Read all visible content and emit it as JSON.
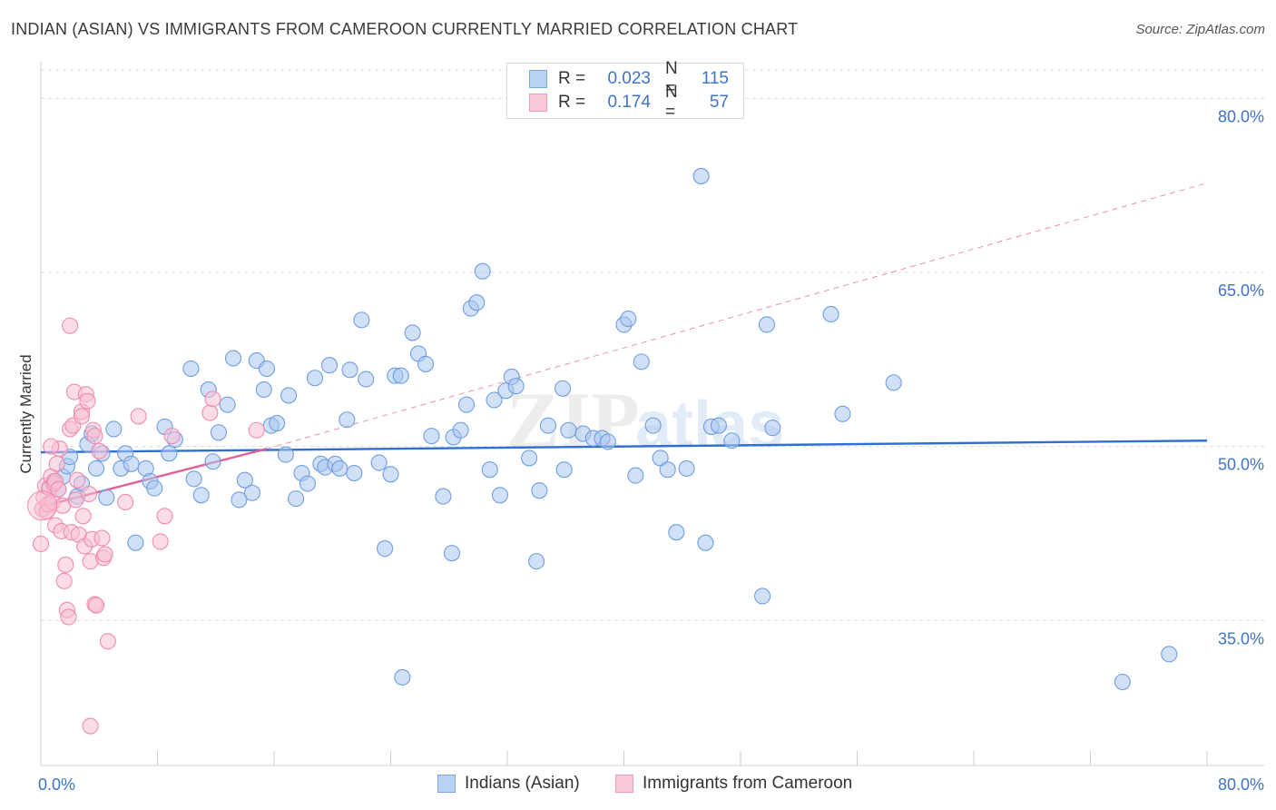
{
  "header": {
    "title": "INDIAN (ASIAN) VS IMMIGRANTS FROM CAMEROON CURRENTLY MARRIED CORRELATION CHART",
    "source": "Source: ZipAtlas.com"
  },
  "legend": {
    "rows": [
      {
        "r_label": "R =",
        "r_value": "0.023",
        "n_label": "N =",
        "n_value": "115",
        "color": "#9dbbee"
      },
      {
        "r_label": "R =",
        "r_value": "0.174",
        "n_label": "N =",
        "n_value": "57",
        "color": "#f4a7c0"
      }
    ]
  },
  "bottom_legend": {
    "items": [
      {
        "label": "Indians (Asian)",
        "color": "#9dbbee"
      },
      {
        "label": "Immigrants from Cameroon",
        "color": "#f4a7c0"
      }
    ]
  },
  "watermark": {
    "zip": "ZIP",
    "atlas": "atlas"
  },
  "chart_data": {
    "type": "scatter",
    "title": "INDIAN (ASIAN) VS IMMIGRANTS FROM CAMEROON CURRENTLY MARRIED CORRELATION CHART",
    "xlabel": "",
    "ylabel": "Currently Married",
    "xlim": [
      0,
      80
    ],
    "ylim": [
      22.5,
      83
    ],
    "x_tick_labels": [
      "0.0%",
      "80.0%"
    ],
    "y_ticks": [
      35,
      50,
      65,
      80
    ],
    "y_tick_labels": [
      "35.0%",
      "50.0%",
      "65.0%",
      "80.0%"
    ],
    "grid": true,
    "legend_position": "top-center",
    "series": [
      {
        "name": "Indians (Asian)",
        "color": "#6f9ee0",
        "fill": "#a9c6f0",
        "r": 0.023,
        "n": 115,
        "trend": {
          "x": [
            0,
            80
          ],
          "y": [
            49.5,
            50.5
          ],
          "style": "solid",
          "color": "#2f6fd0"
        },
        "points": [
          [
            0.6,
            46.5
          ],
          [
            0.9,
            47.0
          ],
          [
            1.2,
            46.3
          ],
          [
            1.5,
            47.4
          ],
          [
            1.8,
            48.3
          ],
          [
            2.0,
            49.1
          ],
          [
            2.5,
            45.7
          ],
          [
            2.8,
            46.8
          ],
          [
            3.2,
            50.2
          ],
          [
            3.5,
            51.1
          ],
          [
            3.8,
            48.1
          ],
          [
            4.2,
            49.4
          ],
          [
            4.5,
            45.6
          ],
          [
            5.0,
            51.5
          ],
          [
            5.5,
            48.1
          ],
          [
            5.8,
            49.4
          ],
          [
            6.2,
            48.5
          ],
          [
            6.5,
            41.7
          ],
          [
            7.2,
            48.1
          ],
          [
            7.5,
            47.0
          ],
          [
            7.8,
            46.4
          ],
          [
            8.5,
            51.7
          ],
          [
            8.8,
            49.4
          ],
          [
            9.2,
            50.6
          ],
          [
            10.3,
            56.7
          ],
          [
            10.5,
            47.2
          ],
          [
            11.0,
            45.8
          ],
          [
            11.5,
            54.9
          ],
          [
            11.8,
            48.7
          ],
          [
            12.2,
            51.2
          ],
          [
            12.8,
            53.6
          ],
          [
            13.2,
            57.6
          ],
          [
            13.6,
            45.4
          ],
          [
            14.0,
            47.1
          ],
          [
            14.5,
            46.0
          ],
          [
            14.8,
            57.4
          ],
          [
            15.3,
            54.9
          ],
          [
            15.5,
            56.7
          ],
          [
            15.8,
            51.8
          ],
          [
            16.2,
            52.0
          ],
          [
            16.8,
            49.3
          ],
          [
            17.0,
            54.4
          ],
          [
            17.5,
            45.5
          ],
          [
            17.9,
            47.7
          ],
          [
            18.3,
            46.8
          ],
          [
            18.8,
            55.9
          ],
          [
            19.2,
            48.5
          ],
          [
            19.5,
            48.2
          ],
          [
            19.8,
            57.0
          ],
          [
            20.2,
            48.5
          ],
          [
            20.5,
            48.1
          ],
          [
            21.0,
            52.3
          ],
          [
            21.2,
            56.6
          ],
          [
            21.5,
            47.7
          ],
          [
            22.0,
            60.9
          ],
          [
            22.3,
            55.8
          ],
          [
            23.2,
            48.6
          ],
          [
            23.6,
            41.2
          ],
          [
            24.0,
            47.6
          ],
          [
            24.3,
            56.1
          ],
          [
            24.7,
            56.1
          ],
          [
            25.5,
            59.8
          ],
          [
            25.9,
            58.0
          ],
          [
            26.4,
            57.1
          ],
          [
            26.8,
            50.9
          ],
          [
            27.6,
            45.7
          ],
          [
            28.2,
            40.8
          ],
          [
            28.3,
            50.8
          ],
          [
            28.8,
            51.4
          ],
          [
            29.2,
            53.6
          ],
          [
            29.5,
            61.9
          ],
          [
            29.9,
            62.4
          ],
          [
            30.3,
            65.1
          ],
          [
            30.8,
            48.0
          ],
          [
            31.1,
            54.0
          ],
          [
            31.5,
            45.8
          ],
          [
            31.9,
            54.8
          ],
          [
            32.3,
            56.0
          ],
          [
            32.6,
            55.2
          ],
          [
            33.5,
            49.0
          ],
          [
            34.0,
            40.1
          ],
          [
            34.2,
            46.2
          ],
          [
            34.8,
            51.8
          ],
          [
            35.8,
            55.0
          ],
          [
            35.9,
            48.0
          ],
          [
            36.2,
            51.4
          ],
          [
            37.2,
            51.1
          ],
          [
            37.9,
            50.7
          ],
          [
            38.5,
            50.7
          ],
          [
            38.9,
            50.4
          ],
          [
            40.0,
            60.5
          ],
          [
            40.3,
            61.0
          ],
          [
            40.8,
            47.5
          ],
          [
            41.2,
            57.3
          ],
          [
            42.0,
            51.8
          ],
          [
            42.5,
            49.0
          ],
          [
            43.0,
            48.0
          ],
          [
            43.6,
            42.6
          ],
          [
            44.3,
            48.1
          ],
          [
            45.3,
            73.3
          ],
          [
            45.6,
            41.7
          ],
          [
            46.0,
            51.7
          ],
          [
            46.5,
            51.8
          ],
          [
            47.4,
            50.5
          ],
          [
            49.5,
            37.1
          ],
          [
            49.8,
            60.5
          ],
          [
            50.2,
            51.6
          ],
          [
            54.2,
            61.4
          ],
          [
            55.0,
            52.8
          ],
          [
            58.5,
            55.5
          ],
          [
            74.2,
            29.7
          ],
          [
            77.4,
            32.1
          ],
          [
            24.8,
            30.1
          ]
        ]
      },
      {
        "name": "Immigrants from Cameroon",
        "color": "#f08bb0",
        "fill": "#f7bfd3",
        "r": 0.174,
        "n": 57,
        "trend": {
          "x": [
            0,
            15.5
          ],
          "y": [
            44.8,
            49.8
          ],
          "style": "solid",
          "color": "#e0609a",
          "extension": {
            "x": [
              15.5,
              80
            ],
            "y": [
              49.8,
              72.7
            ],
            "style": "dashed"
          }
        },
        "points": [
          [
            0.0,
            41.6
          ],
          [
            0.1,
            44.6
          ],
          [
            0.2,
            45.6
          ],
          [
            0.3,
            46.6
          ],
          [
            0.4,
            44.4
          ],
          [
            0.5,
            45.0
          ],
          [
            0.6,
            46.4
          ],
          [
            0.7,
            47.4
          ],
          [
            0.8,
            45.2
          ],
          [
            0.9,
            46.8
          ],
          [
            1.0,
            43.2
          ],
          [
            1.0,
            47.0
          ],
          [
            1.1,
            48.5
          ],
          [
            1.2,
            46.3
          ],
          [
            1.3,
            49.8
          ],
          [
            1.4,
            42.7
          ],
          [
            1.5,
            44.9
          ],
          [
            1.6,
            38.4
          ],
          [
            1.7,
            39.8
          ],
          [
            1.8,
            35.9
          ],
          [
            1.9,
            35.3
          ],
          [
            2.0,
            51.5
          ],
          [
            2.1,
            42.6
          ],
          [
            2.2,
            51.8
          ],
          [
            2.3,
            54.7
          ],
          [
            2.4,
            45.4
          ],
          [
            2.5,
            47.1
          ],
          [
            2.6,
            42.4
          ],
          [
            2.8,
            53.0
          ],
          [
            2.8,
            52.6
          ],
          [
            2.9,
            44.0
          ],
          [
            3.0,
            41.4
          ],
          [
            3.1,
            54.5
          ],
          [
            3.2,
            53.9
          ],
          [
            3.3,
            45.9
          ],
          [
            3.4,
            40.1
          ],
          [
            3.5,
            42.0
          ],
          [
            3.6,
            51.4
          ],
          [
            3.7,
            36.4
          ],
          [
            3.8,
            36.3
          ],
          [
            4.0,
            49.6
          ],
          [
            4.2,
            42.1
          ],
          [
            4.3,
            40.4
          ],
          [
            4.4,
            40.7
          ],
          [
            4.6,
            33.2
          ],
          [
            2.0,
            60.4
          ],
          [
            3.4,
            25.9
          ],
          [
            5.8,
            45.2
          ],
          [
            6.7,
            52.6
          ],
          [
            8.2,
            41.8
          ],
          [
            8.5,
            44.0
          ],
          [
            9.0,
            50.9
          ],
          [
            11.6,
            52.9
          ],
          [
            11.8,
            54.1
          ],
          [
            14.8,
            51.4
          ],
          [
            3.7,
            50.9
          ],
          [
            0.7,
            50.0
          ]
        ]
      }
    ]
  }
}
